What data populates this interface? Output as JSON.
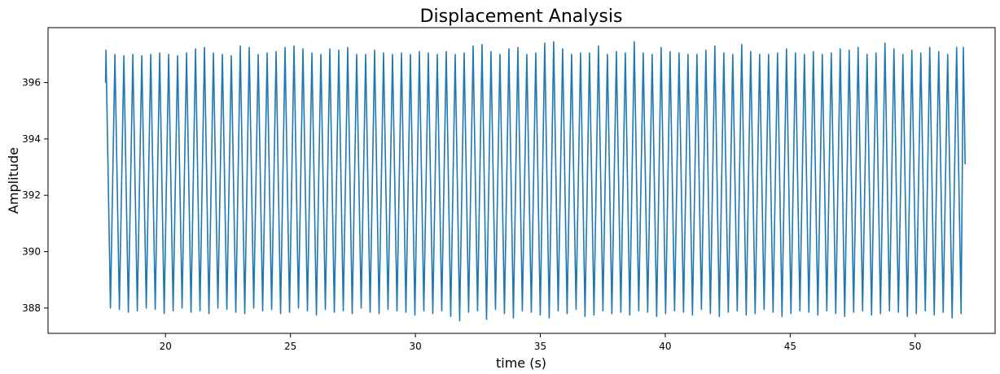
{
  "chart_data": {
    "type": "line",
    "title": "Displacement Analysis",
    "xlabel": "time (s)",
    "ylabel": "Amplitude",
    "xlim": [
      15.3,
      53.2
    ],
    "ylim": [
      387.1,
      397.95
    ],
    "x_ticks": [
      20,
      25,
      30,
      35,
      40,
      45,
      50
    ],
    "y_ticks": [
      388,
      390,
      392,
      394,
      396
    ],
    "grid": false,
    "series": [
      {
        "color": "#1f77b4",
        "x_start": 17.6,
        "x_end": 52.0,
        "start_value": 396.0,
        "end_value": 393.1,
        "cycles": 96,
        "peaks": [
          397.15,
          397.0,
          396.95,
          397.0,
          396.95,
          397.0,
          397.05,
          397.0,
          396.95,
          397.05,
          397.2,
          397.25,
          397.05,
          397.0,
          396.95,
          397.3,
          397.25,
          397.0,
          397.05,
          397.1,
          397.25,
          397.3,
          397.2,
          397.05,
          397.0,
          397.2,
          397.15,
          397.25,
          397.0,
          397.0,
          397.15,
          397.05,
          397.0,
          397.05,
          397.0,
          397.1,
          397.05,
          397.0,
          397.1,
          397.0,
          397.05,
          397.3,
          397.35,
          397.1,
          397.0,
          397.2,
          397.25,
          397.0,
          397.05,
          397.4,
          397.45,
          397.2,
          397.0,
          397.05,
          397.05,
          397.3,
          397.0,
          397.1,
          397.05,
          397.45,
          397.05,
          397.0,
          397.25,
          397.1,
          397.05,
          397.0,
          397.0,
          397.15,
          397.3,
          397.05,
          397.0,
          397.35,
          397.1,
          397.0,
          397.0,
          397.05,
          397.2,
          397.05,
          397.0,
          397.1,
          397.0,
          397.05,
          397.2,
          397.15,
          397.25,
          397.0,
          397.05,
          397.4,
          397.2,
          397.0,
          397.15,
          397.05,
          397.25,
          397.1,
          397.0,
          397.25
        ],
        "troughs": [
          388.0,
          387.95,
          387.85,
          387.9,
          388.0,
          387.95,
          387.8,
          387.9,
          388.0,
          387.85,
          387.9,
          387.8,
          388.0,
          387.95,
          387.85,
          387.8,
          388.0,
          387.9,
          387.95,
          387.8,
          387.85,
          388.0,
          387.9,
          387.75,
          387.95,
          387.85,
          387.9,
          387.8,
          388.0,
          387.85,
          387.8,
          387.95,
          387.9,
          387.85,
          387.75,
          387.9,
          387.8,
          387.9,
          387.7,
          387.55,
          387.85,
          387.9,
          387.6,
          387.95,
          387.8,
          387.65,
          387.9,
          387.85,
          387.75,
          387.65,
          387.9,
          387.8,
          387.95,
          387.7,
          387.75,
          387.9,
          387.8,
          387.85,
          387.75,
          387.9,
          387.85,
          387.7,
          387.8,
          387.9,
          387.85,
          387.75,
          387.95,
          387.8,
          387.7,
          387.85,
          387.9,
          387.75,
          387.8,
          387.95,
          387.85,
          387.7,
          387.8,
          387.9,
          387.85,
          387.75,
          387.9,
          387.8,
          387.7,
          387.85,
          387.9,
          387.75,
          387.8,
          387.9,
          387.85,
          387.7,
          387.8,
          387.9,
          387.75,
          387.85,
          387.65,
          387.8
        ]
      }
    ]
  }
}
